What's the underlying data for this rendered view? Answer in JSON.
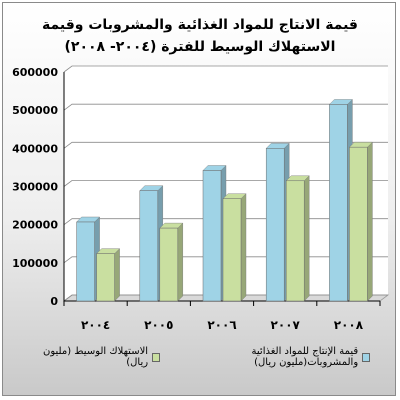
{
  "chart_data": {
    "type": "bar",
    "title": "قيمة الانتاج للمواد الغذائية والمشروبات وقيمة الاستهلاك الوسيط للفترة (٢٠٠٤- ٢٠٠٨)",
    "categories": [
      "٢٠٠٤",
      "٢٠٠٥",
      "٢٠٠٦",
      "٢٠٠٧",
      "٢٠٠٨"
    ],
    "series": [
      {
        "name": "قيمة الإنتاج للمواد الغذائية والمشروبات(مليون ريال)",
        "values": [
          207000,
          289000,
          342000,
          400000,
          515000
        ],
        "color": "#9fd3e6"
      },
      {
        "name": "الاستهلاك الوسيط (مليون ريال)",
        "values": [
          124000,
          191000,
          268000,
          315000,
          403000
        ],
        "color": "#c9dfa0"
      }
    ],
    "ylim": [
      0,
      600000
    ],
    "yticks": [
      "0",
      "100000",
      "200000",
      "300000",
      "400000",
      "500000",
      "600000"
    ],
    "grid": true,
    "legend_position": "bottom"
  }
}
